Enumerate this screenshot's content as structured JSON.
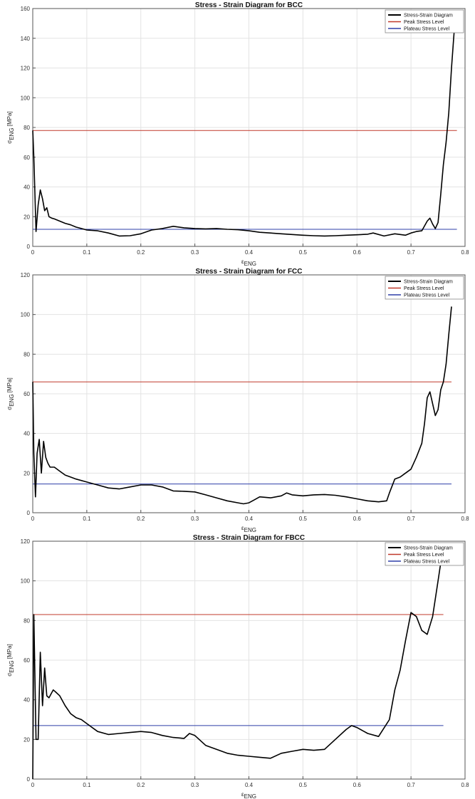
{
  "colors": {
    "stress_strain": "#000000",
    "peak": "#c0392b",
    "plateau": "#2e3fa8",
    "grid": "#e3e3e3",
    "axes": "#555555"
  },
  "chart_data": [
    {
      "type": "line",
      "title": "Stress - Strain Diagram for BCC",
      "xlabel": "εENG",
      "ylabel": "σENG [MPa]",
      "xlim": [
        0,
        0.8
      ],
      "ylim": [
        0,
        160
      ],
      "xticks": [
        "0",
        "0.1",
        "0.2",
        "0.3",
        "0.4",
        "0.5",
        "0.6",
        "0.7",
        "0.8"
      ],
      "yticks": [
        "0",
        "20",
        "40",
        "60",
        "80",
        "100",
        "120",
        "140",
        "160"
      ],
      "grid": true,
      "legend_position": "top-right",
      "series": [
        {
          "name": "Stress-Strain Diagram",
          "x": [
            0,
            0.002,
            0.006,
            0.01,
            0.014,
            0.018,
            0.022,
            0.026,
            0.03,
            0.035,
            0.04,
            0.05,
            0.06,
            0.07,
            0.08,
            0.09,
            0.1,
            0.12,
            0.14,
            0.16,
            0.18,
            0.2,
            0.22,
            0.24,
            0.26,
            0.28,
            0.3,
            0.32,
            0.34,
            0.36,
            0.38,
            0.4,
            0.42,
            0.44,
            0.46,
            0.48,
            0.5,
            0.52,
            0.54,
            0.56,
            0.58,
            0.6,
            0.62,
            0.63,
            0.65,
            0.67,
            0.69,
            0.7,
            0.71,
            0.72,
            0.73,
            0.735,
            0.74,
            0.745,
            0.75,
            0.755,
            0.76,
            0.765,
            0.77,
            0.775,
            0.78,
            0.785
          ],
          "y": [
            78,
            60,
            10,
            28,
            38,
            32,
            24,
            26,
            20,
            19,
            18.5,
            17,
            15.5,
            14.5,
            13,
            12,
            11,
            10.5,
            9,
            7,
            7.2,
            8.5,
            11,
            12,
            13.5,
            12.5,
            12,
            11.8,
            12,
            11.5,
            11.2,
            10.5,
            9.5,
            9,
            8.5,
            8,
            7.5,
            7.2,
            7,
            7.2,
            7.5,
            7.8,
            8.2,
            9,
            7,
            8.5,
            7.5,
            9,
            10,
            10.5,
            17,
            19,
            15,
            12,
            16,
            35,
            55,
            70,
            90,
            120,
            145,
            157
          ]
        },
        {
          "name": "Peak Stress Level",
          "x": [
            0,
            0.785
          ],
          "y": [
            78,
            78
          ]
        },
        {
          "name": "Plateau Stress Level",
          "x": [
            0,
            0.785
          ],
          "y": [
            11.5,
            11.5
          ]
        }
      ]
    },
    {
      "type": "line",
      "title": "Stress - Strain Diagram for FCC",
      "xlabel": "εENG",
      "ylabel": "σENG [MPa]",
      "xlim": [
        0,
        0.8
      ],
      "ylim": [
        0,
        120
      ],
      "xticks": [
        "0",
        "0.1",
        "0.2",
        "0.3",
        "0.4",
        "0.5",
        "0.6",
        "0.7",
        "0.8"
      ],
      "yticks": [
        "0",
        "20",
        "40",
        "60",
        "80",
        "100",
        "120"
      ],
      "grid": true,
      "legend_position": "top-right",
      "series": [
        {
          "name": "Stress-Strain Diagram",
          "x": [
            0,
            0.002,
            0.005,
            0.008,
            0.012,
            0.016,
            0.02,
            0.024,
            0.028,
            0.032,
            0.036,
            0.04,
            0.05,
            0.06,
            0.07,
            0.08,
            0.1,
            0.12,
            0.14,
            0.16,
            0.18,
            0.2,
            0.22,
            0.24,
            0.26,
            0.28,
            0.3,
            0.32,
            0.34,
            0.36,
            0.38,
            0.39,
            0.4,
            0.41,
            0.42,
            0.44,
            0.46,
            0.47,
            0.48,
            0.5,
            0.52,
            0.54,
            0.56,
            0.58,
            0.6,
            0.62,
            0.64,
            0.655,
            0.66,
            0.67,
            0.68,
            0.69,
            0.7,
            0.71,
            0.72,
            0.725,
            0.73,
            0.735,
            0.74,
            0.745,
            0.75,
            0.755,
            0.76,
            0.765,
            0.77,
            0.775
          ],
          "y": [
            66,
            30,
            8,
            30,
            37,
            20,
            36,
            28,
            25,
            23,
            23,
            23,
            21,
            19,
            18,
            17,
            15.5,
            14,
            12.5,
            12,
            13,
            14,
            14,
            13,
            11,
            10.8,
            10.5,
            9,
            7.5,
            6,
            5,
            4.5,
            5,
            6.5,
            8,
            7.5,
            8.5,
            10,
            9,
            8.5,
            9,
            9.2,
            8.8,
            8,
            7,
            6,
            5.5,
            6,
            10,
            17,
            18,
            20,
            22,
            28,
            35,
            45,
            58,
            61,
            55,
            49,
            52,
            62,
            66,
            75,
            90,
            104
          ]
        },
        {
          "name": "Peak Stress Level",
          "x": [
            0,
            0.775
          ],
          "y": [
            66,
            66
          ]
        },
        {
          "name": "Plateau Stress Level",
          "x": [
            0,
            0.775
          ],
          "y": [
            14.5,
            14.5
          ]
        }
      ]
    },
    {
      "type": "line",
      "title": "Stress - Strain Diagram for FBCC",
      "xlabel": "εENG",
      "ylabel": "σENG [MPa]",
      "xlim": [
        0,
        0.8
      ],
      "ylim": [
        0,
        120
      ],
      "xticks": [
        "0",
        "0.1",
        "0.2",
        "0.3",
        "0.4",
        "0.5",
        "0.6",
        "0.7",
        "0.8"
      ],
      "yticks": [
        "0",
        "20",
        "40",
        "60",
        "80",
        "100",
        "120"
      ],
      "grid": true,
      "legend_position": "top-right",
      "series": [
        {
          "name": "Stress-Strain Diagram",
          "x": [
            0,
            0.002,
            0.006,
            0.01,
            0.014,
            0.018,
            0.022,
            0.026,
            0.03,
            0.034,
            0.038,
            0.042,
            0.05,
            0.06,
            0.07,
            0.08,
            0.09,
            0.1,
            0.12,
            0.14,
            0.16,
            0.18,
            0.2,
            0.22,
            0.24,
            0.26,
            0.28,
            0.29,
            0.3,
            0.32,
            0.34,
            0.36,
            0.38,
            0.4,
            0.42,
            0.44,
            0.46,
            0.48,
            0.5,
            0.52,
            0.54,
            0.56,
            0.58,
            0.59,
            0.6,
            0.62,
            0.64,
            0.66,
            0.67,
            0.68,
            0.69,
            0.7,
            0.71,
            0.72,
            0.73,
            0.74,
            0.75,
            0.76
          ],
          "y": [
            0,
            83,
            20,
            20,
            64,
            37,
            56,
            42,
            41,
            43,
            45,
            44,
            42,
            37,
            33,
            31,
            30,
            28,
            24,
            22.5,
            23,
            23.5,
            24,
            23.5,
            22,
            21,
            20.5,
            23,
            22,
            17,
            15,
            13,
            12,
            11.5,
            11,
            10.5,
            13,
            14,
            15,
            14.5,
            15,
            20,
            25,
            27,
            26,
            23,
            21.5,
            30,
            45,
            55,
            70,
            84,
            82,
            75,
            73,
            82,
            100,
            118
          ]
        },
        {
          "name": "Peak Stress Level",
          "x": [
            0,
            0.76
          ],
          "y": [
            83,
            83
          ]
        },
        {
          "name": "Plateau Stress Level",
          "x": [
            0,
            0.76
          ],
          "y": [
            27,
            27
          ]
        }
      ]
    }
  ]
}
